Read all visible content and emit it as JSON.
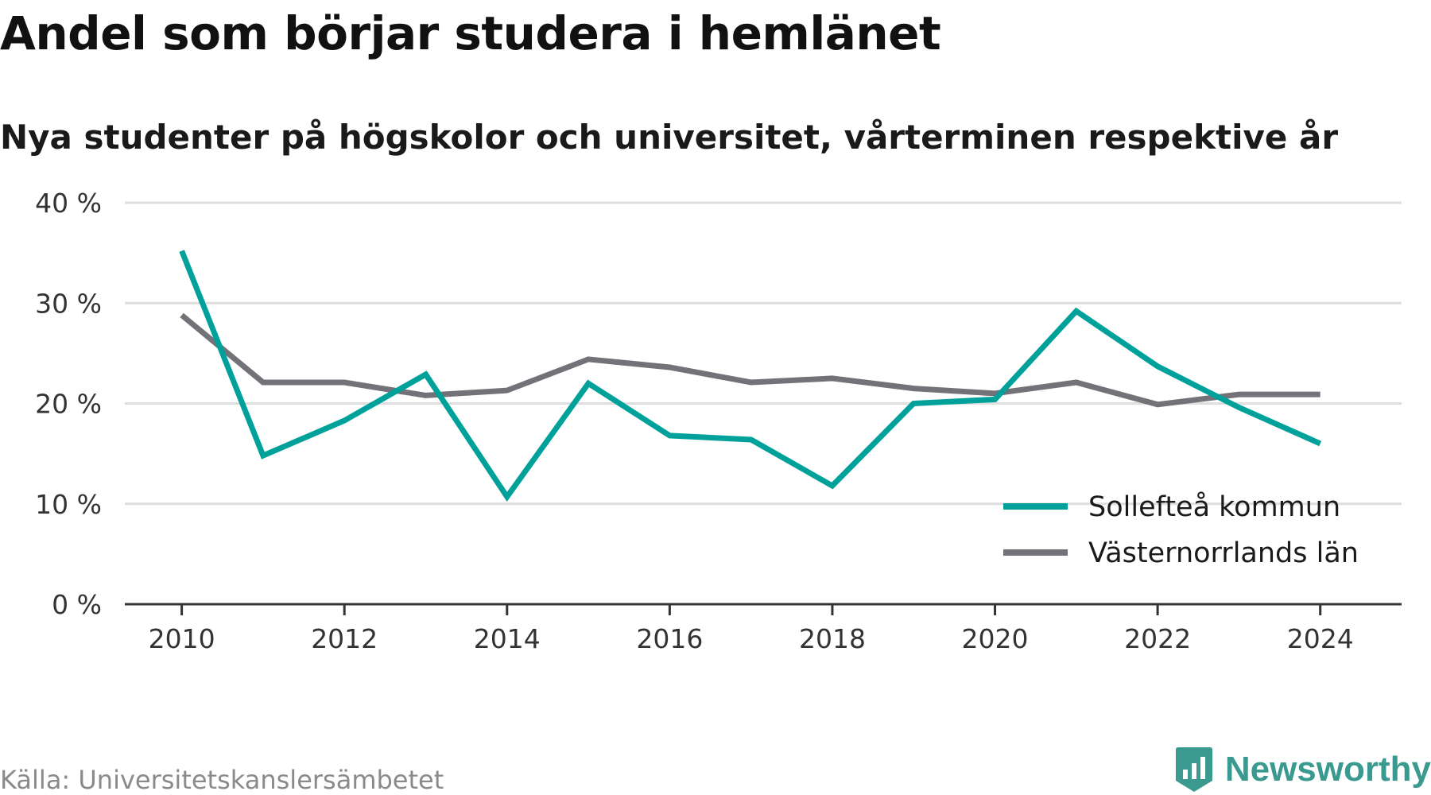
{
  "header": {
    "title": "Andel som börjar studera i hemlänet",
    "subtitle": "Nya studenter på högskolor och universitet, vårterminen respektive år"
  },
  "footer": {
    "source": "Källa: Universitetskanslersämbetet",
    "brand": "Newsworthy",
    "brand_color": "#3a9a8f"
  },
  "chart_data": {
    "type": "line",
    "x": [
      2010,
      2011,
      2012,
      2013,
      2014,
      2015,
      2016,
      2017,
      2018,
      2019,
      2020,
      2021,
      2022,
      2023,
      2024
    ],
    "x_ticks": [
      2010,
      2012,
      2014,
      2016,
      2018,
      2020,
      2022,
      2024
    ],
    "y_ticks": [
      0,
      10,
      20,
      30,
      40
    ],
    "y_tick_labels": [
      "0 %",
      "10 %",
      "20 %",
      "30 %",
      "40 %"
    ],
    "ylim": [
      0,
      40
    ],
    "xlim": [
      2009.3,
      2025.0
    ],
    "grid": true,
    "legend_position": "bottom-right",
    "series": [
      {
        "name": "Sollefteå kommun",
        "color": "#00a19a",
        "values": [
          35.2,
          14.8,
          18.3,
          22.9,
          10.7,
          22.0,
          16.8,
          16.4,
          11.8,
          20.0,
          20.4,
          29.2,
          23.7,
          19.6,
          16.0
        ]
      },
      {
        "name": "Västernorrlands län",
        "color": "#737278",
        "values": [
          28.8,
          22.1,
          22.1,
          20.8,
          21.3,
          24.4,
          23.6,
          22.1,
          22.5,
          21.5,
          21.0,
          22.1,
          19.9,
          20.9,
          20.9
        ]
      }
    ]
  }
}
